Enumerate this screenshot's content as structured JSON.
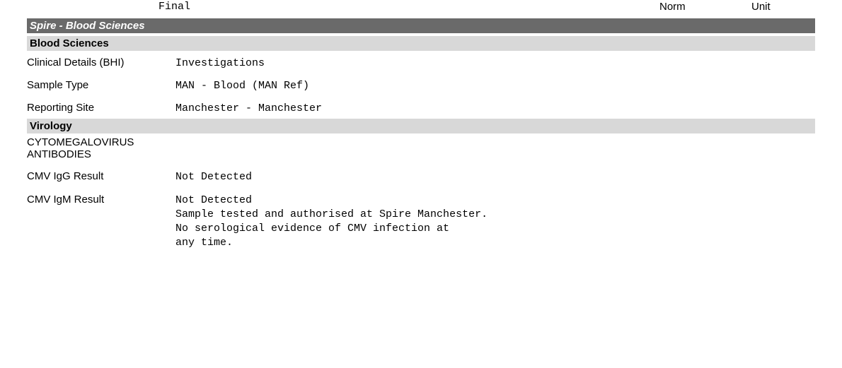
{
  "header": {
    "status_line2": "Final",
    "col_norm": "Norm",
    "col_unit": "Unit"
  },
  "band_provider": "Spire - Blood Sciences",
  "section_blood_sciences": {
    "title": "Blood Sciences",
    "rows": [
      {
        "label": "Clinical Details (BHI)",
        "value": "Investigations"
      },
      {
        "label": "Sample Type",
        "value": "MAN - Blood (MAN Ref)"
      },
      {
        "label": "Reporting Site",
        "value": "Manchester - Manchester"
      }
    ]
  },
  "section_virology": {
    "title": "Virology",
    "test_group": "CYTOMEGALOVIRUS ANTIBODIES",
    "rows": [
      {
        "label": "CMV IgG Result",
        "value": "Not Detected"
      },
      {
        "label": "CMV IgM Result",
        "value": "Not Detected\nSample tested and authorised at Spire Manchester.\nNo serological evidence of CMV infection at\nany time."
      }
    ]
  },
  "colors": {
    "band_dark_bg": "#6a6a6a",
    "band_dark_fg": "#ffffff",
    "band_light_bg": "#d8d8d8",
    "band_light_fg": "#000000",
    "page_bg": "#ffffff",
    "text": "#000000"
  },
  "fonts": {
    "sans": "Arial, Helvetica, sans-serif",
    "mono": "\"Courier New\", Courier, monospace"
  }
}
